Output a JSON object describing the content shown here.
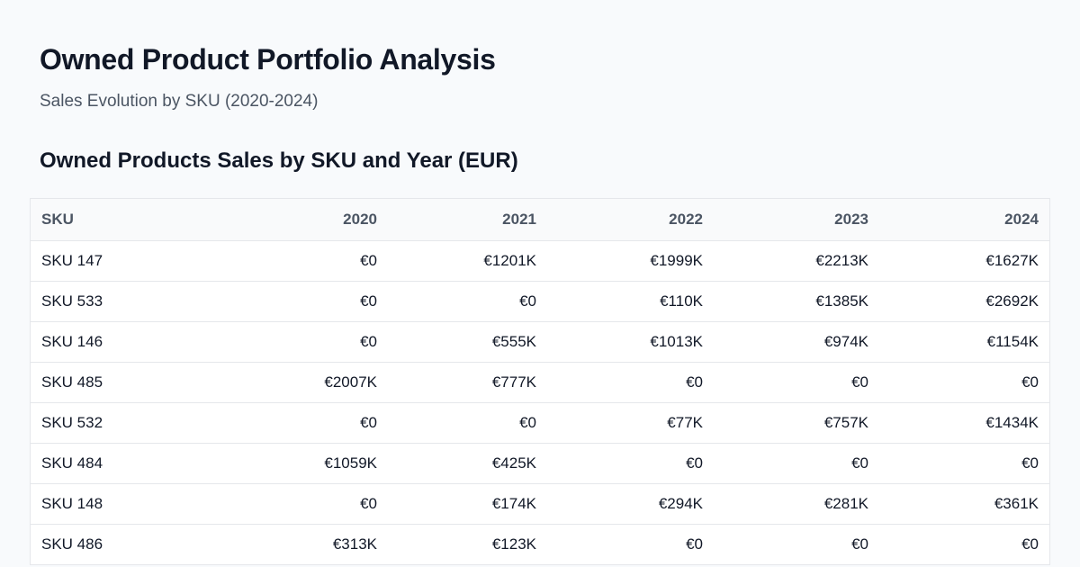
{
  "header": {
    "title": "Owned Product Portfolio Analysis",
    "subtitle": "Sales Evolution by SKU (2020-2024)"
  },
  "table": {
    "title": "Owned Products Sales by SKU and Year (EUR)",
    "columns": [
      "SKU",
      "2020",
      "2021",
      "2022",
      "2023",
      "2024"
    ],
    "rows": [
      [
        "SKU 147",
        "€0",
        "€1201K",
        "€1999K",
        "€2213K",
        "€1627K"
      ],
      [
        "SKU 533",
        "€0",
        "€0",
        "€110K",
        "€1385K",
        "€2692K"
      ],
      [
        "SKU 146",
        "€0",
        "€555K",
        "€1013K",
        "€974K",
        "€1154K"
      ],
      [
        "SKU 485",
        "€2007K",
        "€777K",
        "€0",
        "€0",
        "€0"
      ],
      [
        "SKU 532",
        "€0",
        "€0",
        "€77K",
        "€757K",
        "€1434K"
      ],
      [
        "SKU 484",
        "€1059K",
        "€425K",
        "€0",
        "€0",
        "€0"
      ],
      [
        "SKU 148",
        "€0",
        "€174K",
        "€294K",
        "€281K",
        "€361K"
      ],
      [
        "SKU 486",
        "€313K",
        "€123K",
        "€0",
        "€0",
        "€0"
      ]
    ]
  },
  "colors": {
    "background": "#f8fafc",
    "text": "#111827",
    "muted": "#4b5563",
    "border": "#e5e7eb"
  }
}
